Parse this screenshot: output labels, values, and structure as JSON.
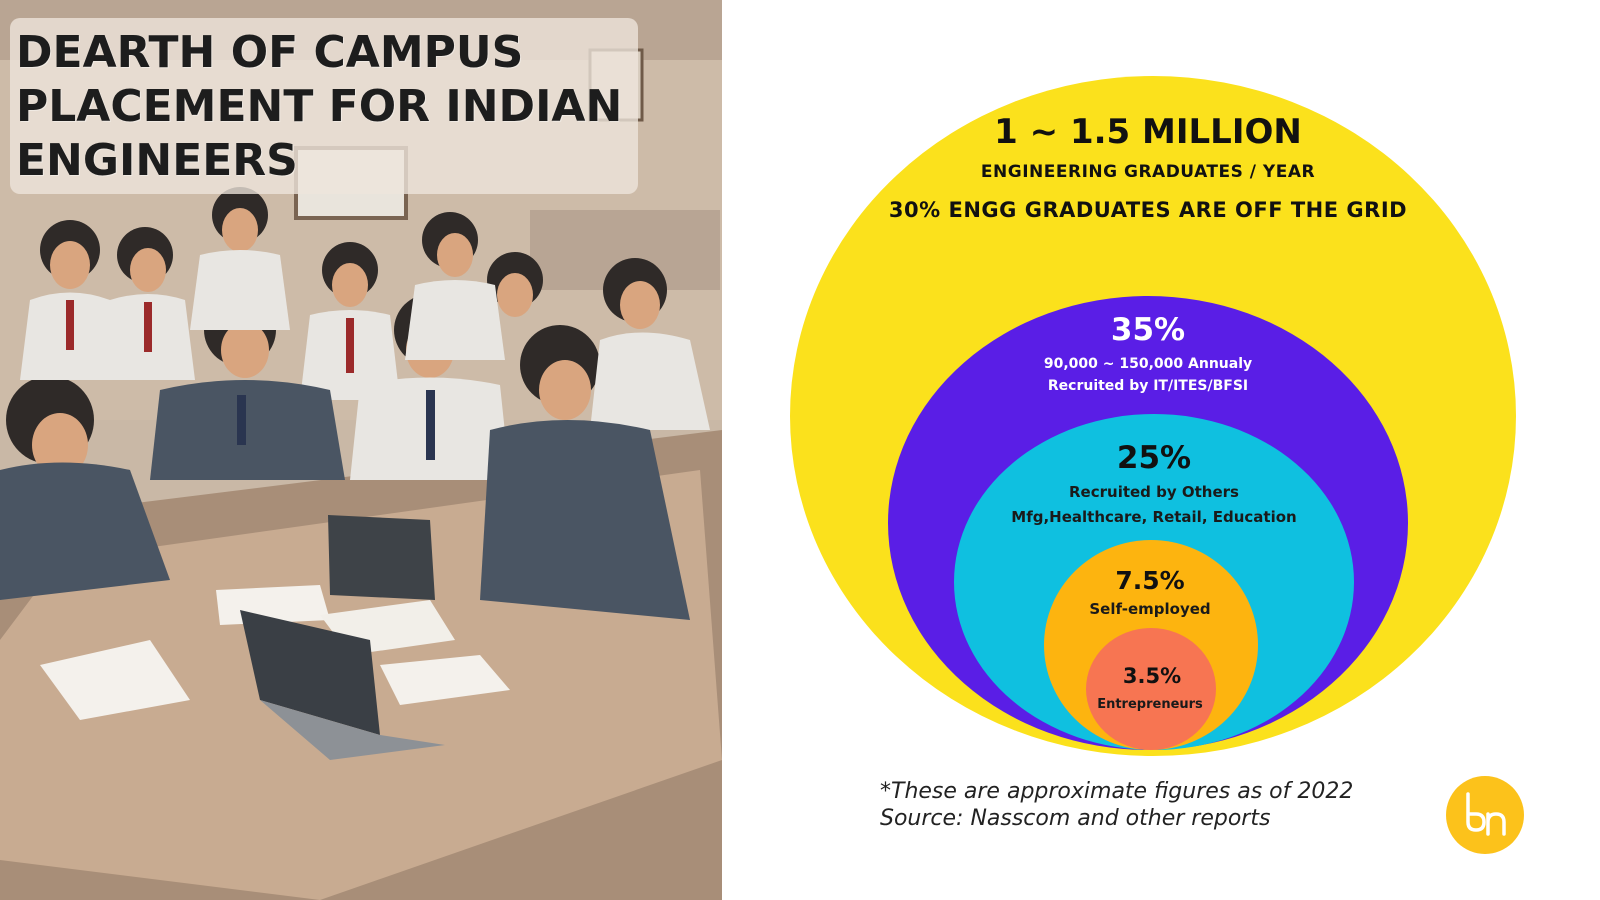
{
  "left_panel": {
    "title_lines": [
      "DEARTH OF CAMPUS",
      "PLACEMENT FOR INDIAN",
      "ENGINEERS"
    ],
    "illustration": "students-around-table-with-laptops"
  },
  "diagram": {
    "colors": {
      "yellow": "#fbe11c",
      "purple": "#5a1ee6",
      "cyan": "#0fc0e0",
      "orange": "#fdb40f",
      "coral": "#f77552"
    },
    "outer": {
      "headline": "1 ~ 1.5 MILLION",
      "subhead": "ENGINEERING GRADUATES / YEAR",
      "note": "30% ENGG GRADUATES ARE OFF THE GRID"
    },
    "levels": [
      {
        "percent": "35%",
        "lines": [
          "90,000 ~ 150,000 Annualy",
          "Recruited by IT/ITES/BFSI"
        ]
      },
      {
        "percent": "25%",
        "lines": [
          "Recruited by Others",
          "Mfg,Healthcare, Retail, Education"
        ]
      },
      {
        "percent": "7.5%",
        "lines": [
          "Self-employed"
        ]
      },
      {
        "percent": "3.5%",
        "lines": [
          "Entrepreneurs"
        ]
      }
    ]
  },
  "footnote": {
    "line1": "*These are approximate figures as of 2022",
    "line2": "Source: Nasscom and other reports"
  },
  "logo": {
    "icon": "brand-logo-icon",
    "color": "#fcc21b"
  }
}
